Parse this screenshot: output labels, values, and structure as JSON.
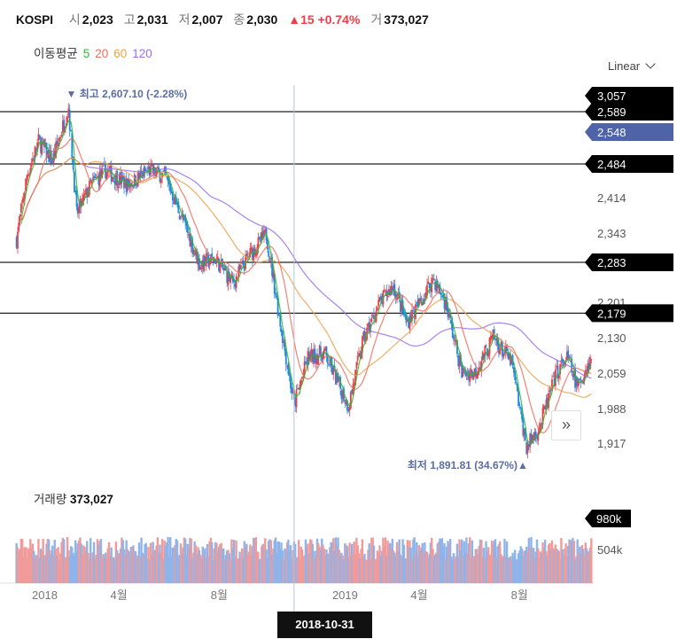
{
  "header": {
    "symbol": "KOSPI",
    "open_label": "시",
    "open": "2,023",
    "high_label": "고",
    "high": "2,031",
    "low_label": "저",
    "low": "2,007",
    "close_label": "종",
    "close": "2,030",
    "change": "▲15 +0.74%",
    "volume_label": "거",
    "volume": "373,027"
  },
  "moving_avg": {
    "label": "이동평균",
    "p5": "5",
    "p20": "20",
    "p60": "60",
    "p120": "120"
  },
  "scale_selector": "Linear",
  "expand_button": "»",
  "volume_panel": {
    "title": "거래량",
    "value": "373,027",
    "max_tag": "980k",
    "tick": "504k"
  },
  "crosshair_date": "2018-10-31",
  "colors": {
    "up": "#e8404a",
    "down": "#1e88e5",
    "vol_up": "#f19a9a",
    "vol_down": "#8fb4ea",
    "ma5": "#2eb82e",
    "ma20": "#f26b5b",
    "ma60": "#f0a04b",
    "ma120": "#9a6cf0",
    "current_tag": "#4e63a8"
  },
  "chart_data": {
    "type": "candlestick",
    "title": "KOSPI",
    "x_tick_labels": [
      "2018",
      "4월",
      "8월",
      "2019",
      "4월",
      "8월"
    ],
    "y_ticks": [
      1917,
      1988,
      2059,
      2130,
      2201,
      2343,
      2414
    ],
    "y_tick_labels": [
      "1,917",
      "1,988",
      "2,059",
      "2,130",
      "2,201",
      "2,343",
      "2,414"
    ],
    "price_lines": [
      {
        "value": 2589,
        "label": "2,589"
      },
      {
        "value": 2484,
        "label": "2,484"
      },
      {
        "value": 2283,
        "label": "2,283"
      },
      {
        "value": 2179,
        "label": "2,179"
      }
    ],
    "top_tag": "3,057",
    "current_tag": "2,548",
    "annotations": [
      {
        "text": "▼ 최고 2,607.10 (-2.28%)",
        "value": 2607.1
      },
      {
        "text": "최저 1,891.81 (34.67%)▲",
        "value": 1891.81
      }
    ],
    "moving_averages": [
      "5",
      "20",
      "60",
      "120"
    ],
    "series_keypoints": [
      {
        "date": "2017-11-27",
        "close": 2330
      },
      {
        "date": "2017-12-10",
        "close": 2460
      },
      {
        "date": "2017-12-24",
        "close": 2530
      },
      {
        "date": "2018-01-10",
        "close": 2490
      },
      {
        "date": "2018-01-29",
        "close": 2598
      },
      {
        "date": "2018-02-08",
        "close": 2380
      },
      {
        "date": "2018-02-25",
        "close": 2440
      },
      {
        "date": "2018-03-15",
        "close": 2470
      },
      {
        "date": "2018-04-10",
        "close": 2440
      },
      {
        "date": "2018-05-05",
        "close": 2470
      },
      {
        "date": "2018-05-25",
        "close": 2460
      },
      {
        "date": "2018-06-20",
        "close": 2350
      },
      {
        "date": "2018-07-05",
        "close": 2280
      },
      {
        "date": "2018-07-25",
        "close": 2290
      },
      {
        "date": "2018-08-15",
        "close": 2240
      },
      {
        "date": "2018-09-05",
        "close": 2300
      },
      {
        "date": "2018-09-25",
        "close": 2340
      },
      {
        "date": "2018-10-12",
        "close": 2160
      },
      {
        "date": "2018-10-29",
        "close": 1996
      },
      {
        "date": "2018-11-15",
        "close": 2090
      },
      {
        "date": "2018-12-05",
        "close": 2100
      },
      {
        "date": "2019-01-03",
        "close": 1993
      },
      {
        "date": "2019-01-20",
        "close": 2120
      },
      {
        "date": "2019-02-10",
        "close": 2200
      },
      {
        "date": "2019-02-27",
        "close": 2235
      },
      {
        "date": "2019-03-15",
        "close": 2160
      },
      {
        "date": "2019-04-01",
        "close": 2200
      },
      {
        "date": "2019-04-16",
        "close": 2250
      },
      {
        "date": "2019-05-01",
        "close": 2200
      },
      {
        "date": "2019-05-20",
        "close": 2060
      },
      {
        "date": "2019-06-05",
        "close": 2060
      },
      {
        "date": "2019-06-28",
        "close": 2130
      },
      {
        "date": "2019-07-20",
        "close": 2080
      },
      {
        "date": "2019-08-07",
        "close": 1909
      },
      {
        "date": "2019-08-22",
        "close": 1950
      },
      {
        "date": "2019-09-12",
        "close": 2060
      },
      {
        "date": "2019-09-25",
        "close": 2090
      },
      {
        "date": "2019-10-08",
        "close": 2030
      },
      {
        "date": "2019-10-25",
        "close": 2090
      }
    ]
  }
}
